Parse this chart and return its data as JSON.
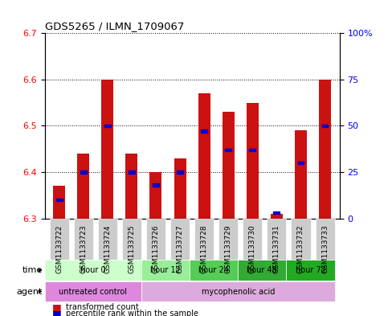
{
  "title": "GDS5265 / ILMN_1709067",
  "samples": [
    "GSM1133722",
    "GSM1133723",
    "GSM1133724",
    "GSM1133725",
    "GSM1133726",
    "GSM1133727",
    "GSM1133728",
    "GSM1133729",
    "GSM1133730",
    "GSM1133731",
    "GSM1133732",
    "GSM1133733"
  ],
  "bar_tops": [
    6.37,
    6.44,
    6.6,
    6.44,
    6.4,
    6.43,
    6.57,
    6.53,
    6.55,
    6.31,
    6.49,
    6.6
  ],
  "percentile_ranks": [
    10,
    25,
    50,
    25,
    18,
    25,
    47,
    37,
    37,
    3,
    30,
    50
  ],
  "bar_bottom": 6.3,
  "ylim_left": [
    6.3,
    6.7
  ],
  "ylim_right": [
    0,
    100
  ],
  "yticks_left": [
    6.3,
    6.4,
    6.5,
    6.6,
    6.7
  ],
  "yticks_right": [
    0,
    25,
    50,
    75,
    100
  ],
  "ytick_labels_right": [
    "0",
    "25",
    "50",
    "75",
    "100%"
  ],
  "bar_color": "#cc1111",
  "percentile_color": "#0000cc",
  "time_groups": [
    {
      "label": "hour 0",
      "start": 0,
      "end": 4,
      "color": "#ccffcc"
    },
    {
      "label": "hour 12",
      "start": 4,
      "end": 6,
      "color": "#99ee99"
    },
    {
      "label": "hour 24",
      "start": 6,
      "end": 8,
      "color": "#55cc55"
    },
    {
      "label": "hour 48",
      "start": 8,
      "end": 10,
      "color": "#33aa33"
    },
    {
      "label": "hour 72",
      "start": 10,
      "end": 12,
      "color": "#22aa22"
    }
  ],
  "agent_groups": [
    {
      "label": "untreated control",
      "start": 0,
      "end": 4,
      "color": "#dd88dd"
    },
    {
      "label": "mycophenolic acid",
      "start": 4,
      "end": 12,
      "color": "#ddaadd"
    }
  ],
  "bar_width": 0.5,
  "background_color": "#ffffff"
}
